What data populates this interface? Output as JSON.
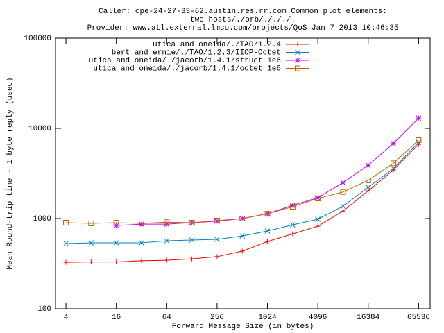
{
  "chart_data": {
    "type": "line",
    "title": [
      "Caller: cpe-24-27-33-62.austin.res.rr.com   Common plot elements:",
      "two hosts/./orb/./././.",
      "Provider: www.atl.external.lmco.com/projects/QoS  Jan 7 2013 10:46:35"
    ],
    "x_label": "Forward Message Size (in bytes)",
    "y_label": "Mean Round-trip time - 1 byte reply (usec)",
    "x": [
      4,
      8,
      16,
      32,
      64,
      128,
      256,
      512,
      1024,
      2048,
      4096,
      8192,
      16384,
      32768,
      65536
    ],
    "xlim": [
      3,
      90000
    ],
    "xticks": [
      4,
      16,
      64,
      256,
      1024,
      4096,
      16384,
      65536
    ],
    "ylim": [
      100,
      100000
    ],
    "yticks": [
      100,
      1000,
      10000,
      100000
    ],
    "x_log": true,
    "y_log": true,
    "legend": "top-right",
    "series": [
      {
        "name": "utica and oneida/./TAO/1.2.4",
        "color": "#ff0000",
        "marker": "plus",
        "values": [
          327,
          330,
          330,
          340,
          345,
          357,
          378,
          435,
          556,
          676,
          822,
          1210,
          2030,
          3450,
          6640
        ]
      },
      {
        "name": "bert and ernie/./TAO/1.2.3/IIOP-Octet",
        "color": "#0080c0",
        "marker": "cross",
        "values": [
          528,
          538,
          538,
          538,
          567,
          578,
          588,
          641,
          727,
          851,
          983,
          1370,
          2220,
          3580,
          7000
        ]
      },
      {
        "name": "utica and oneida/./jacorb/1.4.1/struct 1e6",
        "color": "#c000ff",
        "marker": "star",
        "values": [
          null,
          null,
          835,
          866,
          866,
          900,
          933,
          1000,
          1130,
          1400,
          1700,
          2500,
          3900,
          6800,
          13000
        ]
      },
      {
        "name": "utica and oneida/./jacorb/1.4.1/octet 1e6",
        "color": "#c06000",
        "marker": "square",
        "values": [
          900,
          883,
          900,
          883,
          912,
          900,
          948,
          1000,
          1130,
          1350,
          1670,
          1970,
          2650,
          4100,
          7400
        ]
      }
    ]
  }
}
